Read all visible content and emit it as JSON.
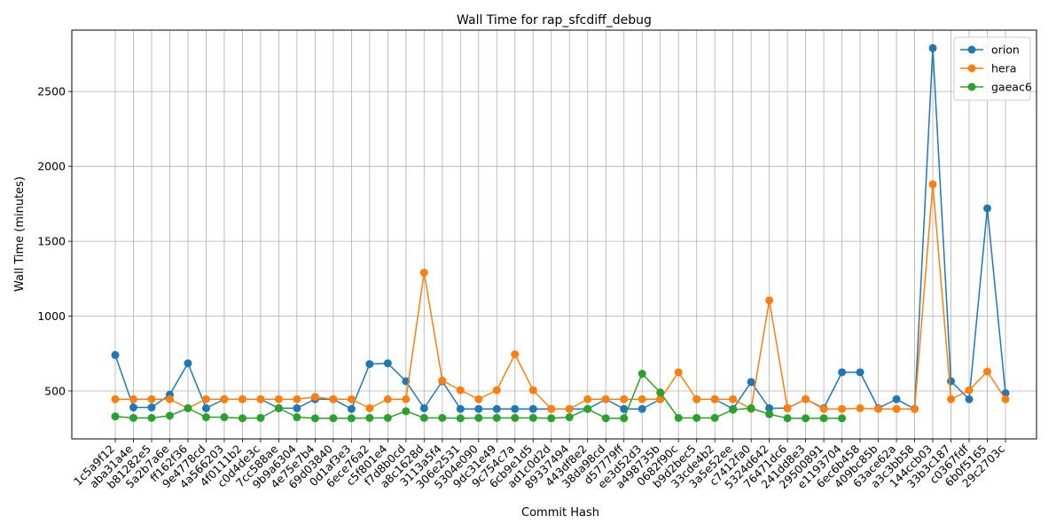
{
  "chart_data": {
    "type": "line",
    "title": "Wall Time for rap_sfcdiff_debug",
    "xlabel": "Commit Hash",
    "ylabel": "Wall Time (minutes)",
    "ylim": [
      180,
      2910
    ],
    "yticks": [
      500,
      1000,
      1500,
      2000,
      2500
    ],
    "grid": true,
    "legend_position": "top-right",
    "categories": [
      "1c5a9f12",
      "aba31a4e",
      "b81282e5",
      "5a2b7a6e",
      "ff162f36",
      "9e4778cd",
      "4a566203",
      "4f0111b2",
      "c0d4de3c",
      "7cc588ae",
      "9b9a6304",
      "4e75e7b4",
      "69d03840",
      "0d1af3e3",
      "6ece76a2",
      "c5f801e4",
      "f7d8b0cd",
      "a8c1628d",
      "3113a5f4",
      "306e2531",
      "5304e090",
      "9dc31e49",
      "9c754c7a",
      "6cb9e1d5",
      "ad1c0d2d",
      "89337494",
      "443df8e2",
      "38da98cd",
      "d57779ff",
      "ee3d52d3",
      "a498735b",
      "0682f90c",
      "b9d2bec5",
      "33cde4b2",
      "3a5e52ee",
      "c7412fa0",
      "5324d642",
      "76471dc6",
      "241dd8e3",
      "29500891",
      "e1193704",
      "6ec6b458",
      "409bc85b",
      "63ace62a",
      "a3c3bb58",
      "144ccb03",
      "33b3c187",
      "c0367fdf",
      "6b0f5165",
      "29c2703c"
    ],
    "series": [
      {
        "name": "orion",
        "color": "#1f77b4",
        "values": [
          740,
          390,
          390,
          475,
          685,
          385,
          445,
          445,
          445,
          385,
          385,
          445,
          445,
          380,
          680,
          685,
          565,
          385,
          565,
          380,
          380,
          380,
          380,
          380,
          380,
          380,
          380,
          445,
          380,
          380,
          445,
          null,
          445,
          445,
          380,
          560,
          385,
          385,
          445,
          385,
          625,
          625,
          385,
          445,
          380,
          2790,
          565,
          445,
          1720,
          485
        ]
      },
      {
        "name": "hera",
        "color": "#ff7f0e",
        "values": [
          445,
          445,
          445,
          445,
          385,
          445,
          445,
          445,
          445,
          445,
          445,
          460,
          445,
          445,
          385,
          445,
          445,
          1290,
          570,
          505,
          445,
          505,
          745,
          505,
          380,
          380,
          445,
          445,
          445,
          445,
          445,
          625,
          445,
          445,
          445,
          380,
          1105,
          385,
          445,
          380,
          380,
          385,
          380,
          380,
          380,
          1880,
          445,
          505,
          630,
          445
        ]
      },
      {
        "name": "gaeac6",
        "color": "#2ca02c",
        "values": [
          330,
          320,
          320,
          335,
          385,
          325,
          325,
          318,
          320,
          385,
          325,
          318,
          318,
          318,
          320,
          320,
          365,
          320,
          320,
          318,
          320,
          320,
          320,
          320,
          318,
          325,
          380,
          318,
          318,
          615,
          490,
          320,
          320,
          320,
          375,
          385,
          345,
          318,
          318,
          318,
          318,
          null,
          null,
          null,
          null,
          null,
          null,
          null,
          null,
          null
        ]
      }
    ]
  }
}
